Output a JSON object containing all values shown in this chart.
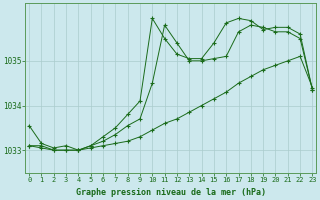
{
  "background_color": "#cce8ed",
  "grid_color": "#aacccc",
  "line_color": "#1a6b1a",
  "title": "Graphe pression niveau de la mer (hPa)",
  "xlabel_hours": [
    0,
    1,
    2,
    3,
    4,
    5,
    6,
    7,
    8,
    9,
    10,
    11,
    12,
    13,
    14,
    15,
    16,
    17,
    18,
    19,
    20,
    21,
    22,
    23
  ],
  "ylim": [
    1032.5,
    1036.3
  ],
  "yticks": [
    1033,
    1034,
    1035
  ],
  "series1": {
    "x": [
      0,
      1,
      2,
      3,
      4,
      5,
      6,
      7,
      8,
      9,
      10,
      11,
      12,
      13,
      14,
      15,
      16,
      17,
      18,
      19,
      20,
      21,
      22,
      23
    ],
    "y": [
      1033.1,
      1033.05,
      1033.0,
      1033.0,
      1033.0,
      1033.05,
      1033.1,
      1033.15,
      1033.2,
      1033.3,
      1033.45,
      1033.6,
      1033.7,
      1033.85,
      1034.0,
      1034.15,
      1034.3,
      1034.5,
      1034.65,
      1034.8,
      1034.9,
      1035.0,
      1035.1,
      1034.4
    ]
  },
  "series2": {
    "x": [
      0,
      1,
      2,
      3,
      4,
      5,
      6,
      7,
      8,
      9,
      10,
      11,
      12,
      13,
      14,
      15,
      16,
      17,
      18,
      19,
      20,
      21,
      22,
      23
    ],
    "y": [
      1033.1,
      1033.1,
      1033.0,
      1033.0,
      1033.0,
      1033.1,
      1033.2,
      1033.35,
      1033.55,
      1033.7,
      1034.5,
      1035.8,
      1035.4,
      1035.0,
      1035.0,
      1035.05,
      1035.1,
      1035.65,
      1035.8,
      1035.75,
      1035.65,
      1035.65,
      1035.5,
      1034.35
    ]
  },
  "series3": {
    "x": [
      0,
      1,
      2,
      3,
      4,
      5,
      6,
      7,
      8,
      9,
      10,
      11,
      12,
      13,
      14,
      15,
      16,
      17,
      18,
      19,
      20,
      21,
      22,
      23
    ],
    "y": [
      1033.55,
      1033.15,
      1033.05,
      1033.1,
      1033.0,
      1033.1,
      1033.3,
      1033.5,
      1033.8,
      1034.1,
      1035.95,
      1035.5,
      1035.15,
      1035.05,
      1035.05,
      1035.4,
      1035.85,
      1035.95,
      1035.9,
      1035.7,
      1035.75,
      1035.75,
      1035.6,
      1034.35
    ]
  }
}
